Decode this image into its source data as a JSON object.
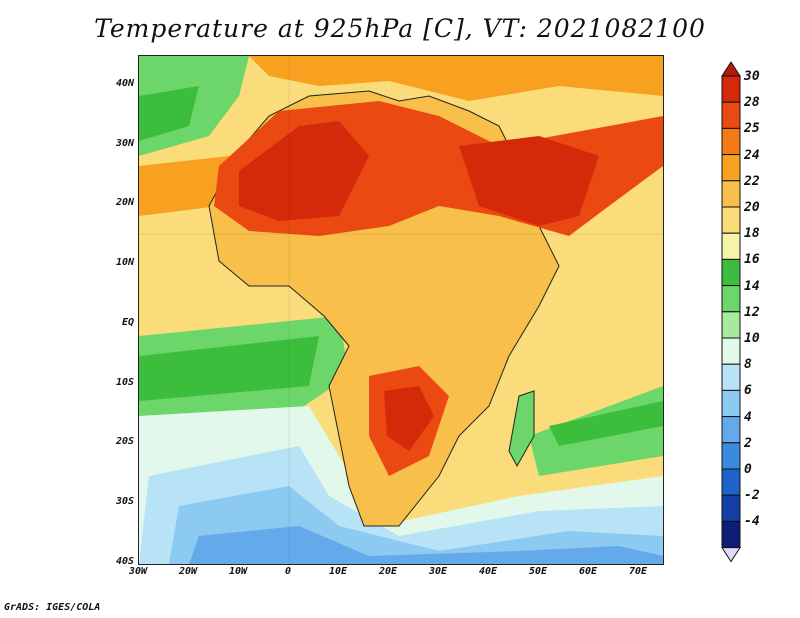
{
  "title": "Temperature at 925hPa [C], VT: 2021082100",
  "credit": "GrADS: IGES/COLA",
  "map": {
    "projection": "latlon",
    "lon_range": [
      -30,
      75
    ],
    "lat_range": [
      -40,
      45
    ],
    "lat_ticks": [
      "40N",
      "30N",
      "20N",
      "10N",
      "EQ",
      "10S",
      "20S",
      "30S",
      "40S"
    ],
    "lon_ticks": [
      "30W",
      "20W",
      "10W",
      "0",
      "10E",
      "20E",
      "30E",
      "40E",
      "50E",
      "60E",
      "70E"
    ]
  },
  "colorbar": {
    "labels": [
      "30",
      "28",
      "25",
      "24",
      "22",
      "20",
      "18",
      "16",
      "14",
      "12",
      "10",
      "8",
      "6",
      "4",
      "2",
      "0",
      "-2",
      "-4"
    ],
    "colors": [
      "#d42a0a",
      "#ea4a12",
      "#f47a16",
      "#f8a020",
      "#f8c04a",
      "#fadc7a",
      "#f6f4a8",
      "#3cbe3c",
      "#6cd66a",
      "#a6eaa0",
      "#e2f8ea",
      "#b8e2f6",
      "#8ccaf2",
      "#64aaea",
      "#3c8ade",
      "#1c64cc",
      "#123ea6",
      "#0c1e78"
    ],
    "top_cap_color": "#b21a0a",
    "bottom_cap_color": "#dcdcf6"
  }
}
